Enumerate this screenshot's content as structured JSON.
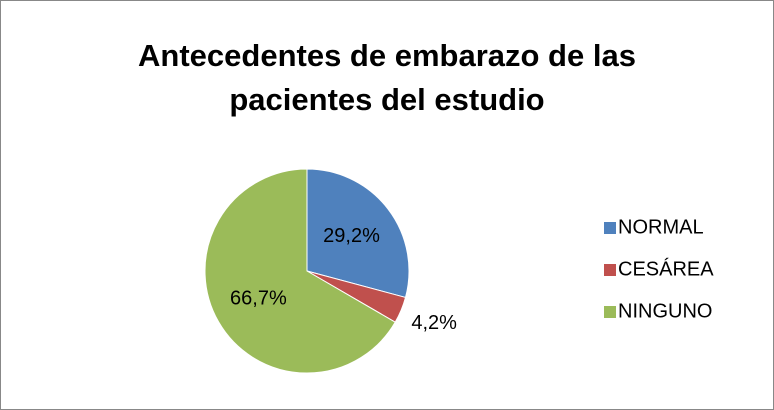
{
  "chart_data": {
    "type": "pie",
    "title": "Antecedentes de embarazo de las pacientes del estudio",
    "categories": [
      "NORMAL",
      "CESÁREA",
      "NINGUNO"
    ],
    "values": [
      29.2,
      4.2,
      66.7
    ],
    "value_labels": [
      "29,2%",
      "4,2%",
      "66,7%"
    ],
    "colors": [
      "#4f81bd",
      "#c0504d",
      "#9bbb59"
    ],
    "legend": "right"
  }
}
